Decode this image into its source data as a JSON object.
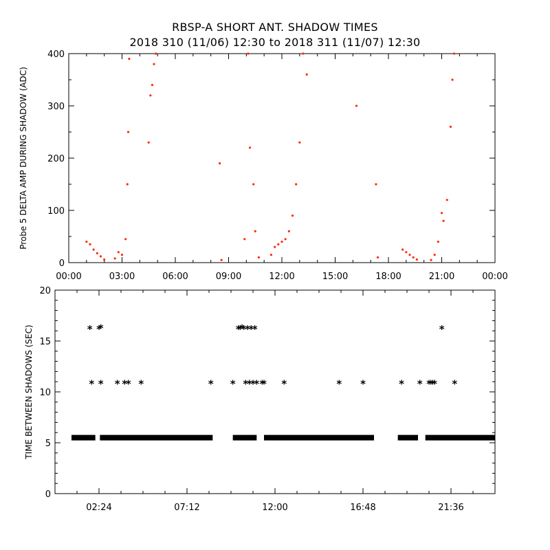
{
  "chart_data": [
    {
      "type": "scatter",
      "title": "RBSP-A SHORT ANT. SHADOW TIMES",
      "subtitle": "2018 310 (11/06) 12:30 to 2018 311 (11/07) 12:30",
      "ylabel": "Probe 5 DELTA AMP DURING SHADOW (ADC)",
      "xlabel": "",
      "xlim": [
        0,
        24
      ],
      "ylim": [
        0,
        400
      ],
      "x_tick_labels": [
        "00:00",
        "03:00",
        "06:00",
        "09:00",
        "12:00",
        "15:00",
        "18:00",
        "21:00",
        "00:00"
      ],
      "y_tick_labels": [
        "0",
        "100",
        "200",
        "300",
        "400"
      ],
      "marker_color": "#ff2a00",
      "series": [
        {
          "x": [
            1.0,
            1.2,
            1.4,
            1.6,
            1.8,
            2.0,
            2.6,
            2.8,
            3.0,
            3.2,
            3.3,
            3.35,
            3.4,
            4.5,
            4.6,
            4.7,
            4.8,
            4.9,
            8.5,
            8.6,
            9.9,
            10.1,
            10.2,
            10.4,
            10.5,
            10.7,
            11.4,
            11.6,
            11.8,
            12.0,
            12.2,
            12.4,
            12.6,
            12.8,
            13.0,
            13.2,
            13.4,
            16.2,
            17.3,
            17.4,
            18.8,
            19.0,
            19.2,
            19.4,
            19.6,
            20.4,
            20.6,
            20.8,
            21.0,
            21.1,
            21.3,
            21.5,
            21.6,
            21.7
          ],
          "y": [
            40,
            35,
            25,
            18,
            12,
            6,
            8,
            20,
            15,
            45,
            150,
            250,
            390,
            230,
            320,
            340,
            380,
            400,
            190,
            5,
            45,
            400,
            220,
            150,
            60,
            10,
            15,
            30,
            35,
            40,
            45,
            60,
            90,
            150,
            230,
            400,
            360,
            300,
            150,
            10,
            25,
            20,
            15,
            10,
            6,
            5,
            15,
            40,
            95,
            80,
            120,
            260,
            350,
            400
          ]
        }
      ]
    },
    {
      "type": "scatter",
      "title": "",
      "xlabel": "",
      "ylabel": "TIME BETWEEN SHADOWS (SEC)",
      "xlim": [
        0,
        24
      ],
      "ylim": [
        0,
        20
      ],
      "x_tick_labels": [
        "02:24",
        "07:12",
        "12:00",
        "16:48",
        "21:36"
      ],
      "y_tick_labels": [
        "0",
        "5",
        "10",
        "15",
        "20"
      ],
      "marker": "asterisk",
      "marker_color": "#000000",
      "baseline_segments": [
        [
          0.9,
          2.2
        ],
        [
          2.45,
          8.6
        ],
        [
          9.7,
          11.0
        ],
        [
          11.4,
          17.4
        ],
        [
          18.7,
          19.8
        ],
        [
          20.2,
          24.0
        ]
      ],
      "baseline_value": 5.5,
      "series": [
        {
          "x": [
            1.9,
            2.0,
            2.4,
            2.5,
            2.5,
            3.4,
            3.8,
            4.0,
            4.7,
            8.5,
            9.7,
            10.0,
            10.1,
            10.2,
            10.3,
            10.4,
            10.5,
            10.6,
            10.7,
            10.8,
            10.9,
            11.0,
            11.3,
            11.4,
            12.5,
            15.5,
            16.8,
            18.9,
            19.9,
            20.4,
            20.5,
            20.6,
            20.7,
            21.1,
            21.8
          ],
          "y": [
            16.3,
            10.9,
            16.3,
            10.9,
            16.4,
            10.9,
            10.9,
            10.9,
            10.9,
            10.9,
            10.9,
            16.3,
            16.3,
            16.4,
            16.3,
            10.9,
            16.3,
            10.9,
            16.3,
            10.9,
            16.3,
            10.9,
            10.9,
            10.9,
            10.9,
            10.9,
            10.9,
            10.9,
            10.9,
            10.9,
            10.9,
            10.9,
            10.9,
            16.3,
            10.9
          ]
        }
      ]
    }
  ]
}
